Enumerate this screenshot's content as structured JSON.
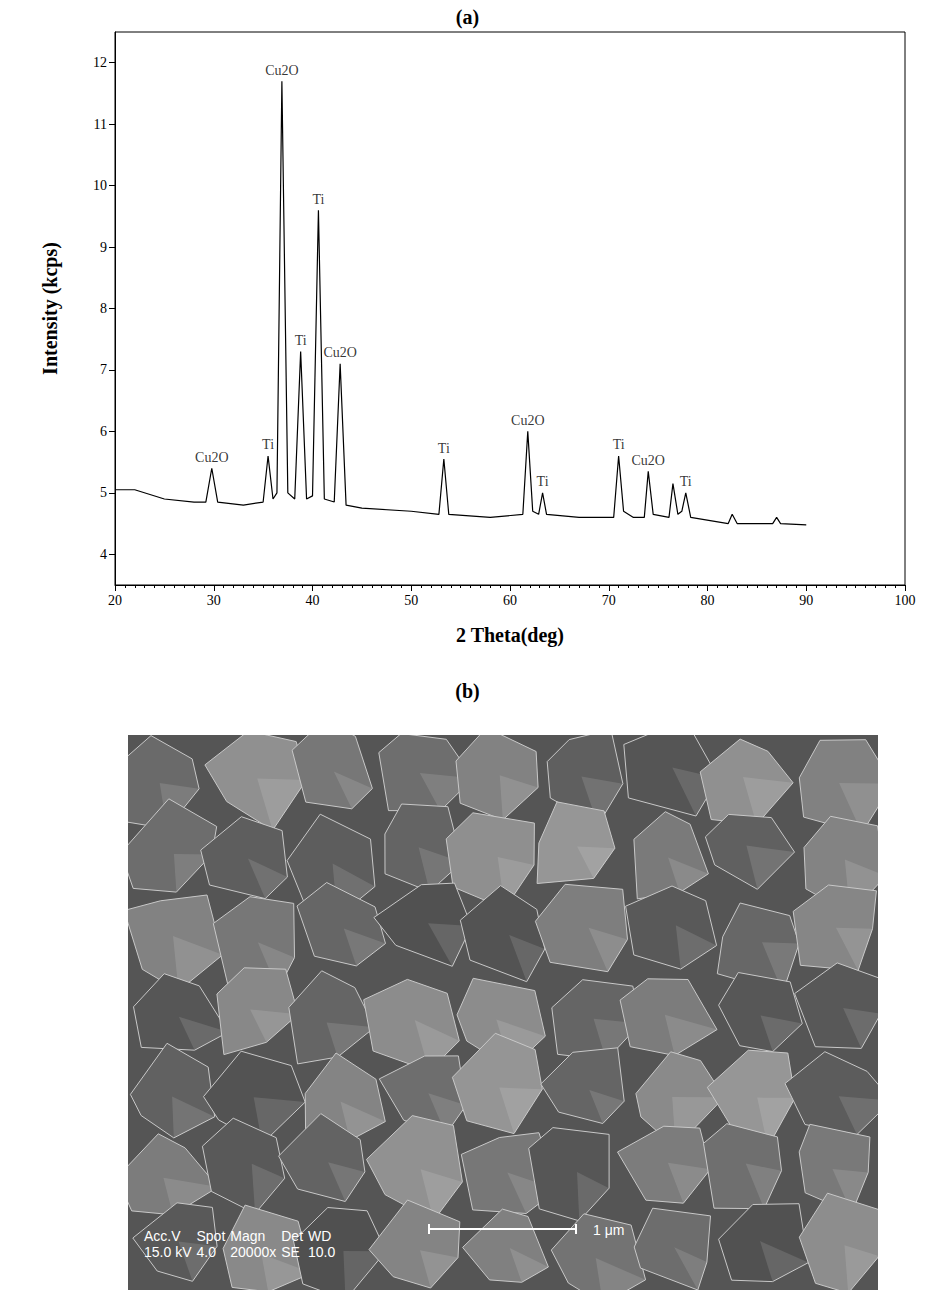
{
  "chart_data": {
    "type": "line",
    "title": "(a)",
    "x_label": "2 Theta(deg)",
    "y_label": "Intensity (kcps)",
    "x": [
      20,
      22,
      25,
      28,
      29.2,
      29.8,
      30.4,
      33,
      35,
      35.5,
      36,
      36.4,
      36.9,
      37.5,
      38.2,
      38.8,
      39.4,
      40.0,
      40.6,
      41.2,
      42.2,
      42.8,
      43.4,
      45,
      50,
      52.8,
      53.3,
      53.8,
      58,
      61.3,
      61.8,
      62.3,
      62.9,
      63.3,
      63.7,
      67,
      70.5,
      71.0,
      71.5,
      72.5,
      73.6,
      74.0,
      74.5,
      76.1,
      76.5,
      77.0,
      77.4,
      77.8,
      78.3,
      82.1,
      82.5,
      83.0,
      86.6,
      87.0,
      87.4,
      90
    ],
    "values": [
      5.05,
      5.05,
      4.9,
      4.85,
      4.85,
      5.4,
      4.85,
      4.8,
      4.85,
      5.6,
      4.9,
      5.0,
      11.7,
      5.0,
      4.9,
      7.3,
      4.9,
      4.95,
      9.6,
      4.9,
      4.85,
      7.1,
      4.8,
      4.75,
      4.7,
      4.65,
      5.55,
      4.65,
      4.6,
      4.65,
      6.0,
      4.7,
      4.65,
      5.0,
      4.65,
      4.6,
      4.6,
      5.6,
      4.7,
      4.6,
      4.6,
      5.35,
      4.65,
      4.6,
      5.15,
      4.65,
      4.7,
      5.0,
      4.6,
      4.5,
      4.65,
      4.5,
      4.5,
      4.6,
      4.5,
      4.48
    ],
    "color": "#000000",
    "xlim": [
      20,
      100
    ],
    "xticks": [
      20,
      30,
      40,
      50,
      60,
      70,
      80,
      90,
      100
    ],
    "ylim": [
      3.5,
      12.5
    ],
    "yticks": [
      4,
      5,
      6,
      7,
      8,
      9,
      10,
      11,
      12
    ],
    "grid": false,
    "annotations": [
      {
        "x": 29.8,
        "y": 5.4,
        "text": "Cu2O"
      },
      {
        "x": 35.5,
        "y": 5.6,
        "text": "Ti"
      },
      {
        "x": 36.9,
        "y": 11.7,
        "text": "Cu2O"
      },
      {
        "x": 38.8,
        "y": 7.3,
        "text": "Ti"
      },
      {
        "x": 40.6,
        "y": 9.6,
        "text": "Ti"
      },
      {
        "x": 42.8,
        "y": 7.1,
        "text": "Cu2O"
      },
      {
        "x": 53.3,
        "y": 5.55,
        "text": "Ti"
      },
      {
        "x": 61.8,
        "y": 6.0,
        "text": "Cu2O"
      },
      {
        "x": 63.3,
        "y": 5.0,
        "text": "Ti"
      },
      {
        "x": 71.0,
        "y": 5.6,
        "text": "Ti"
      },
      {
        "x": 74.0,
        "y": 5.35,
        "text": "Cu2O"
      },
      {
        "x": 77.8,
        "y": 5.0,
        "text": "Ti"
      }
    ]
  },
  "micrograph": {
    "title": "(b)",
    "info_heads": [
      "Acc.V",
      "Spot",
      "Magn",
      "Det",
      "WD"
    ],
    "info_values": [
      "15.0 kV",
      "4.0",
      "20000x",
      "SE",
      "10.0"
    ],
    "scale_bar": "1 μm"
  }
}
